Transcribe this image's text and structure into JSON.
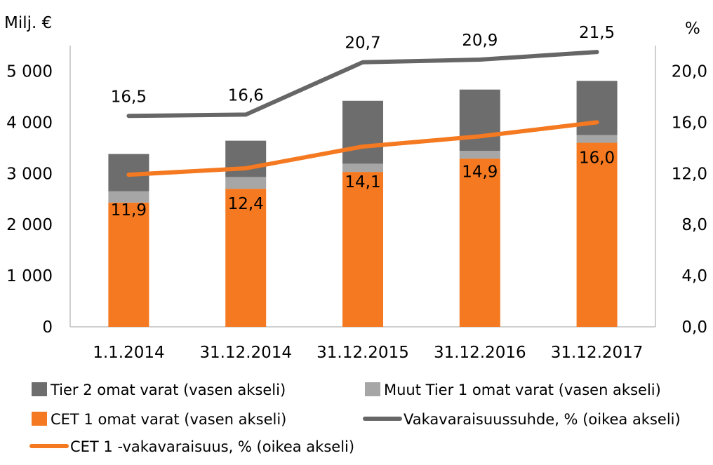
{
  "chart_data": {
    "type": "bar",
    "stacked": true,
    "categories": [
      "1.1.2014",
      "31.12.2014",
      "31.12.2015",
      "31.12.2016",
      "31.12.2017"
    ],
    "left_axis": {
      "unit": "Milj. €",
      "range": [
        0,
        5500
      ],
      "ticks": [
        0,
        1000,
        2000,
        3000,
        4000,
        5000
      ],
      "tick_labels": [
        "0",
        "1 000",
        "2 000",
        "3 000",
        "4 000",
        "5 000"
      ]
    },
    "right_axis": {
      "unit": "%",
      "range": [
        0,
        22
      ],
      "ticks": [
        0,
        4,
        8,
        12,
        16,
        20
      ],
      "tick_labels": [
        "0,0",
        "4,0",
        "8,0",
        "12,0",
        "16,0",
        "20,0"
      ]
    },
    "grid": false,
    "legend_position": "bottom",
    "bar_series": [
      {
        "name": "CET 1 omat varat (vasen akseli)",
        "color": "#f47920",
        "values": [
          2430,
          2700,
          3030,
          3290,
          3600
        ]
      },
      {
        "name": "Muut Tier 1 omat varat (vasen akseli)",
        "color": "#a6a6a6",
        "values": [
          220,
          230,
          160,
          150,
          150
        ]
      },
      {
        "name": "Tier 2 omat varat (vasen akseli)",
        "color": "#6d6d6d",
        "values": [
          730,
          710,
          1230,
          1200,
          1060
        ]
      }
    ],
    "line_series": [
      {
        "name": "Vakavaraisuussuhde, % (oikea akseli)",
        "color": "#666666",
        "values": [
          16.5,
          16.6,
          20.7,
          20.9,
          21.5
        ],
        "labels": [
          "16,5",
          "16,6",
          "20,7",
          "20,9",
          "21,5"
        ]
      },
      {
        "name": "CET 1 -vakavaraisuus, % (oikea akseli)",
        "color": "#f47920",
        "values": [
          11.9,
          12.4,
          14.1,
          14.9,
          16.0
        ],
        "labels": [
          "11,9",
          "12,4",
          "14,1",
          "14,9",
          "16,0"
        ]
      }
    ],
    "legend": [
      {
        "label": "Tier 2 omat varat (vasen akseli)",
        "marker": "box",
        "color": "#6d6d6d"
      },
      {
        "label": "Muut Tier 1 omat varat (vasen akseli)",
        "marker": "box",
        "color": "#a6a6a6"
      },
      {
        "label": "CET 1 omat varat (vasen akseli)",
        "marker": "box",
        "color": "#f47920"
      },
      {
        "label": "Vakavaraisuussuhde, % (oikea akseli)",
        "marker": "line",
        "color": "#666666"
      },
      {
        "label": "CET 1 -vakavaraisuus, % (oikea akseli)",
        "marker": "line",
        "color": "#f47920"
      }
    ]
  }
}
